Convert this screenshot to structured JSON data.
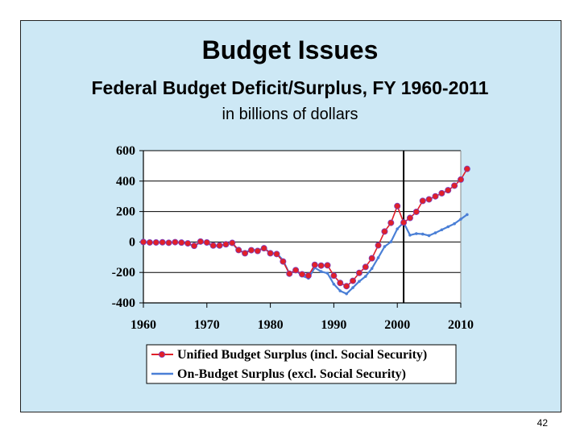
{
  "slide": {
    "title": "Budget Issues",
    "subtitle": "Federal Budget Deficit/Surplus, FY 1960-2011",
    "units": "in billions of dollars",
    "page_number": "42"
  },
  "colors": {
    "background": "#cde8f5",
    "plot_area": "#ffffff",
    "unified": "#e0202a",
    "on_budget": "#4a7fd6"
  },
  "chart_data": {
    "type": "line",
    "title": "Federal Budget Deficit/Surplus, FY 1960-2011",
    "xlabel": "",
    "ylabel": "in billions of dollars",
    "xlim": [
      1960,
      2010
    ],
    "ylim": [
      -400,
      600
    ],
    "x_ticks": [
      1960,
      1970,
      1980,
      1990,
      2000,
      2010
    ],
    "y_ticks": [
      600,
      400,
      200,
      0,
      -200,
      -400
    ],
    "grid": "horizontal",
    "legend": "bottom",
    "annotations": [
      {
        "type": "vertical-line",
        "x": 2001
      }
    ],
    "series": [
      {
        "name": "Unified Budget Surplus (incl. Social Security)",
        "marker": "dot",
        "x": [
          1960,
          1961,
          1962,
          1963,
          1964,
          1965,
          1966,
          1967,
          1968,
          1969,
          1970,
          1971,
          1972,
          1973,
          1974,
          1975,
          1976,
          1977,
          1978,
          1979,
          1980,
          1981,
          1982,
          1983,
          1984,
          1985,
          1986,
          1987,
          1988,
          1989,
          1990,
          1991,
          1992,
          1993,
          1994,
          1995,
          1996,
          1997,
          1998,
          1999,
          2000,
          2001,
          2002,
          2003,
          2004,
          2005,
          2006,
          2007,
          2008,
          2009,
          2010,
          2011
        ],
        "values": [
          0,
          -3,
          -3,
          -2,
          -5,
          -1,
          -4,
          -9,
          -25,
          3,
          -3,
          -23,
          -23,
          -15,
          -6,
          -53,
          -74,
          -54,
          -59,
          -41,
          -74,
          -79,
          -128,
          -208,
          -185,
          -212,
          -221,
          -150,
          -155,
          -153,
          -221,
          -269,
          -290,
          -255,
          -203,
          -164,
          -107,
          -22,
          69,
          126,
          236,
          128,
          158,
          198,
          270,
          280,
          300,
          320,
          340,
          370,
          410,
          480
        ]
      },
      {
        "name": "On-Budget Surplus (excl. Social Security)",
        "marker": "none",
        "x": [
          1960,
          1961,
          1962,
          1963,
          1964,
          1965,
          1966,
          1967,
          1968,
          1969,
          1970,
          1971,
          1972,
          1973,
          1974,
          1975,
          1976,
          1977,
          1978,
          1979,
          1980,
          1981,
          1982,
          1983,
          1984,
          1985,
          1986,
          1987,
          1988,
          1989,
          1990,
          1991,
          1992,
          1993,
          1994,
          1995,
          1996,
          1997,
          1998,
          1999,
          2000,
          2001,
          2002,
          2003,
          2004,
          2005,
          2006,
          2007,
          2008,
          2009,
          2010,
          2011
        ],
        "values": [
          0,
          -3,
          -4,
          -2,
          -5,
          -2,
          -5,
          -12,
          -27,
          -1,
          -8,
          -26,
          -26,
          -15,
          -8,
          -55,
          -71,
          -49,
          -55,
          -40,
          -73,
          -74,
          -120,
          -208,
          -185,
          -222,
          -238,
          -169,
          -194,
          -205,
          -277,
          -321,
          -340,
          -300,
          -259,
          -226,
          -174,
          -103,
          -30,
          1,
          86,
          128,
          45,
          55,
          52,
          42,
          60,
          80,
          100,
          120,
          150,
          180
        ]
      }
    ]
  },
  "legend": {
    "unified_label": "Unified Budget Surplus (incl. Social Security)",
    "on_budget_label": "On-Budget Surplus (excl. Social Security)"
  }
}
